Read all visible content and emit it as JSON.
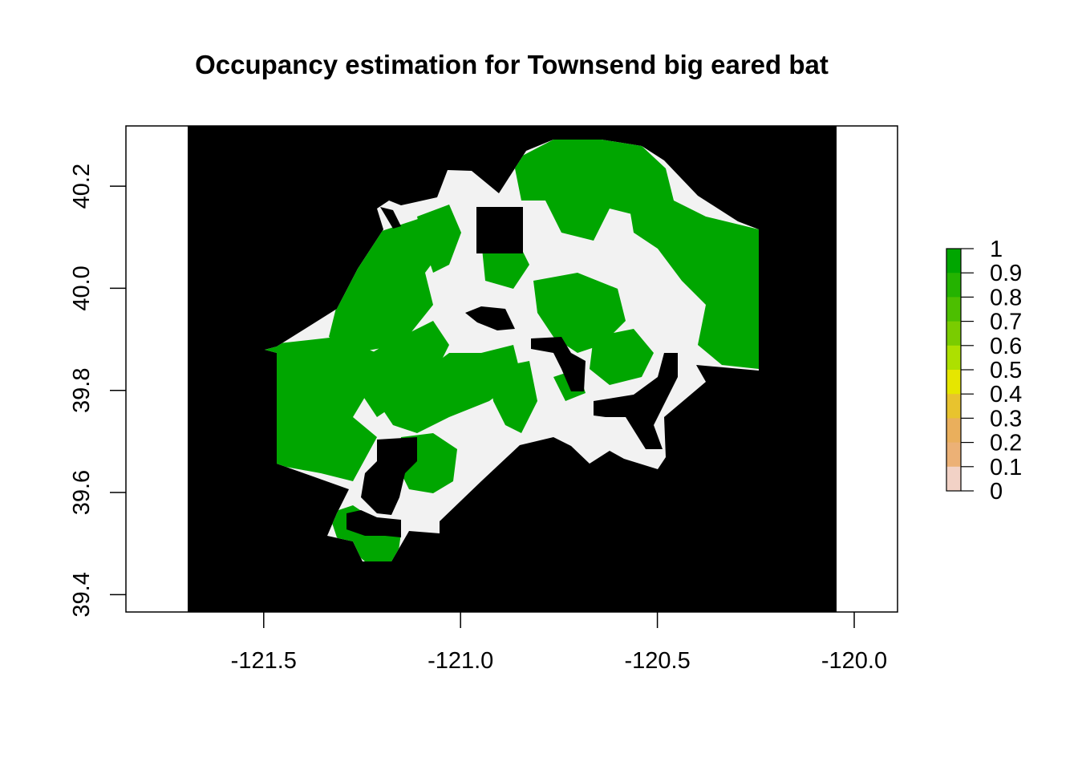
{
  "title": "Occupancy estimation for Townsend big eared bat",
  "map": {
    "type": "raster",
    "x_ticks": [
      "-121.5",
      "-121.0",
      "-120.5",
      "-120.0"
    ],
    "x_tick_values": [
      -121.5,
      -121.0,
      -120.5,
      -120.0
    ],
    "y_ticks": [
      "39.4",
      "39.6",
      "39.8",
      "40.0",
      "40.2"
    ],
    "y_tick_values": [
      39.4,
      39.6,
      39.8,
      40.0,
      40.2
    ],
    "xlim": [
      -121.85,
      -119.89
    ],
    "ylim": [
      39.366,
      40.318
    ],
    "raster_extent_x": [
      -121.69,
      -120.04
    ],
    "background_color": "#000000",
    "low_value_color": "#f2f2f2",
    "high_value_color": "#00a600"
  },
  "legend": {
    "labels": [
      "1",
      "0.9",
      "0.8",
      "0.7",
      "0.6",
      "0.5",
      "0.4",
      "0.3",
      "0.2",
      "0.1",
      "0"
    ],
    "colors": [
      "#00a600",
      "#24b300",
      "#4cbf00",
      "#7acc00",
      "#ade000",
      "#e6e600",
      "#e8c32e",
      "#eaaf5c",
      "#ecb176",
      "#f2d2c6",
      "#f2f2f2"
    ]
  }
}
